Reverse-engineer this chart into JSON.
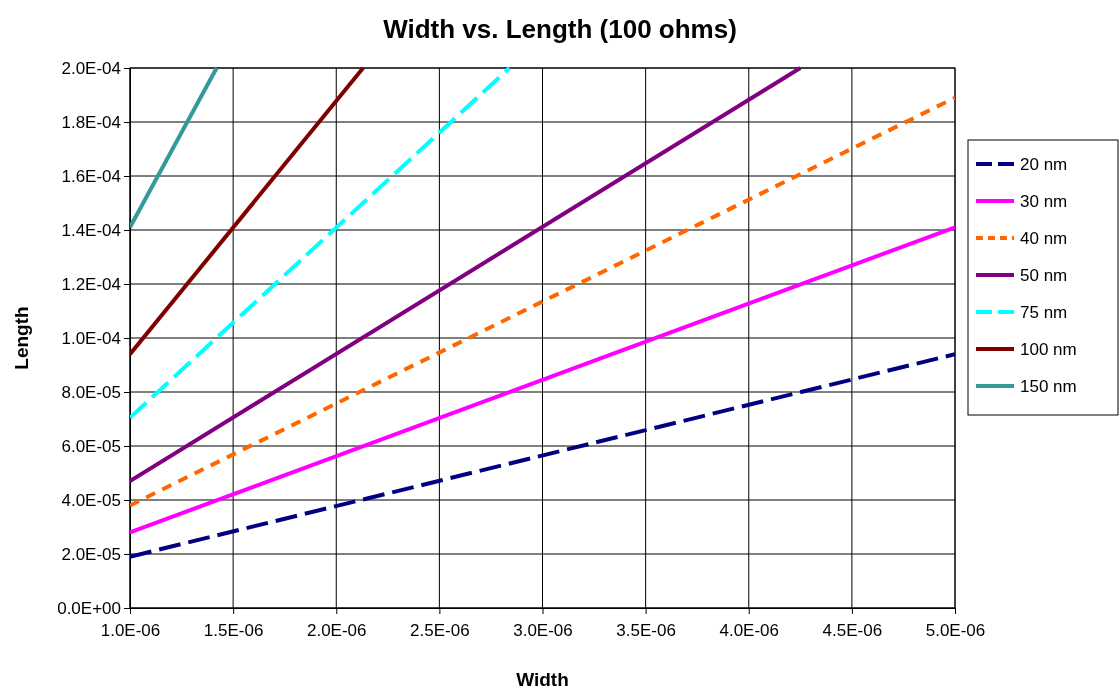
{
  "chart_data": {
    "type": "line",
    "title": "Width vs. Length (100 ohms)",
    "xlabel": "Width",
    "ylabel": "Length",
    "xlim": [
      1e-06,
      5e-06
    ],
    "ylim": [
      0,
      0.0002
    ],
    "xticks": [
      {
        "value": 1e-06,
        "label": "1.0E-06"
      },
      {
        "value": 1.5e-06,
        "label": "1.5E-06"
      },
      {
        "value": 2e-06,
        "label": "2.0E-06"
      },
      {
        "value": 2.5e-06,
        "label": "2.5E-06"
      },
      {
        "value": 3e-06,
        "label": "3.0E-06"
      },
      {
        "value": 3.5e-06,
        "label": "3.5E-06"
      },
      {
        "value": 4e-06,
        "label": "4.0E-06"
      },
      {
        "value": 4.5e-06,
        "label": "4.5E-06"
      },
      {
        "value": 5e-06,
        "label": "5.0E-06"
      }
    ],
    "yticks": [
      {
        "value": 0,
        "label": "0.0E+00"
      },
      {
        "value": 2e-05,
        "label": "2.0E-05"
      },
      {
        "value": 4e-05,
        "label": "4.0E-05"
      },
      {
        "value": 6e-05,
        "label": "6.0E-05"
      },
      {
        "value": 8e-05,
        "label": "8.0E-05"
      },
      {
        "value": 0.0001,
        "label": "1.0E-04"
      },
      {
        "value": 0.00012,
        "label": "1.2E-04"
      },
      {
        "value": 0.00014,
        "label": "1.4E-04"
      },
      {
        "value": 0.00016,
        "label": "1.6E-04"
      },
      {
        "value": 0.00018,
        "label": "1.8E-04"
      },
      {
        "value": 0.0002,
        "label": "2.0E-04"
      }
    ],
    "grid": true,
    "legend": "right",
    "marker": "none",
    "series": [
      {
        "name": "20 nm",
        "color": "#000080",
        "line_style": "dashed",
        "x": [
          1e-06,
          5e-06
        ],
        "values": [
          1.9e-05,
          9.4e-05
        ]
      },
      {
        "name": "30 nm",
        "color": "#ff00ff",
        "line_style": "solid",
        "x": [
          1e-06,
          5e-06
        ],
        "values": [
          2.8e-05,
          0.000141
        ]
      },
      {
        "name": "40 nm",
        "color": "#ff6600",
        "line_style": "dotted",
        "x": [
          1e-06,
          5e-06
        ],
        "values": [
          3.8e-05,
          0.000189
        ]
      },
      {
        "name": "50 nm",
        "color": "#800080",
        "line_style": "solid",
        "x": [
          1e-06,
          4.25e-06
        ],
        "values": [
          4.7e-05,
          0.0002
        ]
      },
      {
        "name": "75 nm",
        "color": "#00ffff",
        "line_style": "dashed",
        "x": [
          1e-06,
          2.84e-06
        ],
        "values": [
          7.05e-05,
          0.0002
        ]
      },
      {
        "name": "100 nm",
        "color": "#800000",
        "line_style": "solid",
        "x": [
          1e-06,
          2.13e-06
        ],
        "values": [
          9.4e-05,
          0.0002
        ]
      },
      {
        "name": "150 nm",
        "color": "#339999",
        "line_style": "solid",
        "x": [
          1e-06,
          1.42e-06
        ],
        "values": [
          0.000141,
          0.0002
        ]
      }
    ]
  }
}
